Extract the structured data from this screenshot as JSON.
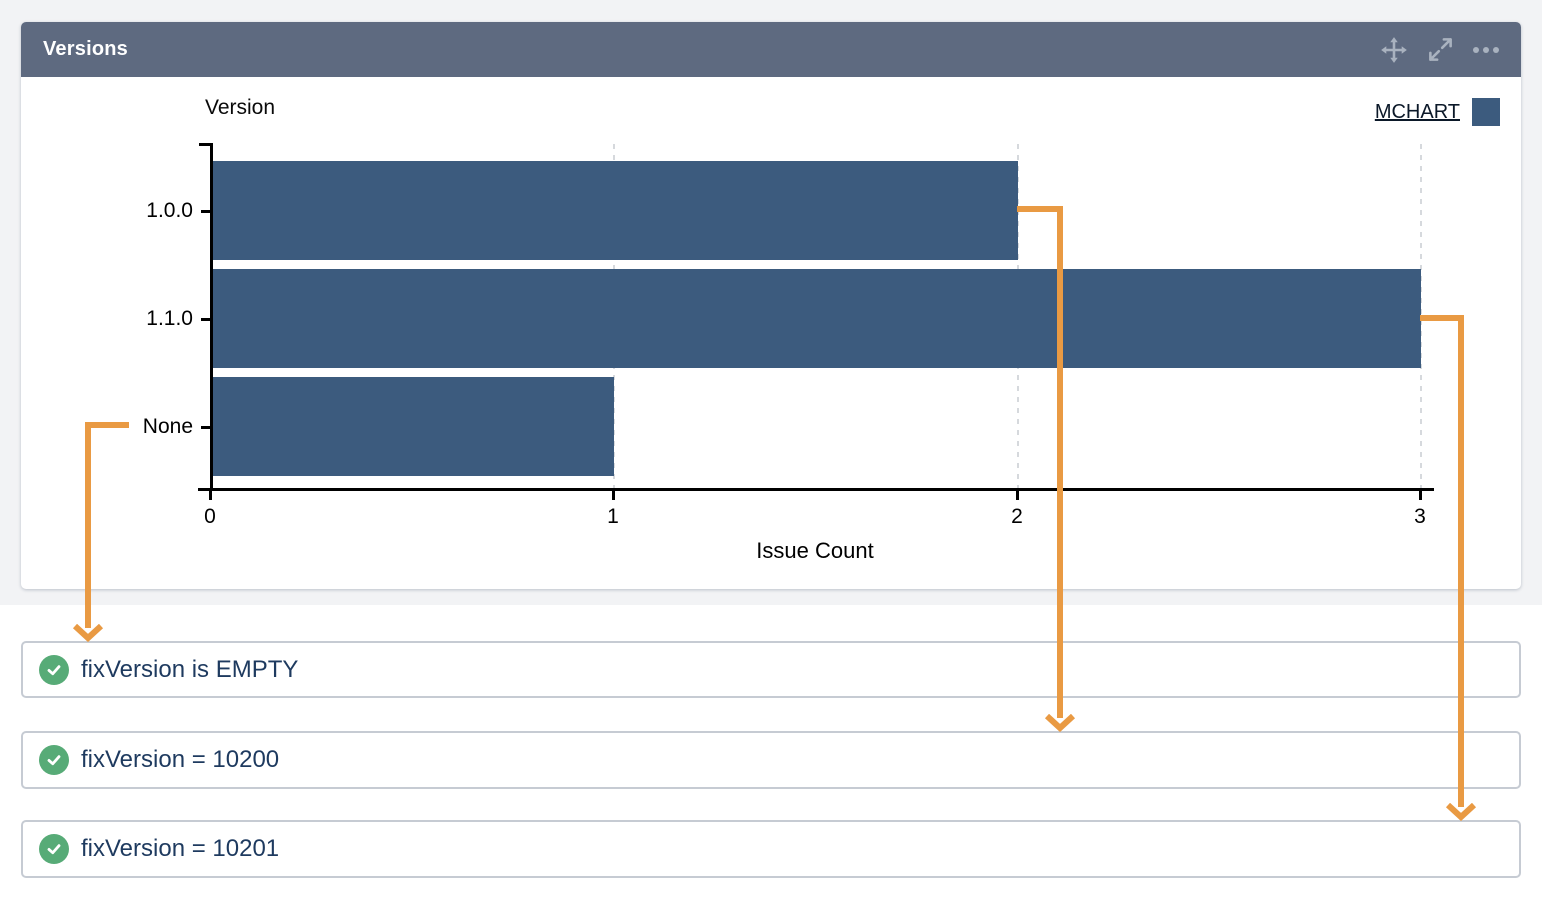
{
  "panel": {
    "title": "Versions",
    "header_icons": [
      {
        "name": "move-icon"
      },
      {
        "name": "expand-icon"
      },
      {
        "name": "more-options-icon"
      }
    ],
    "legend": {
      "label": "MCHART",
      "swatch_color": "#3c5b7e"
    }
  },
  "chart_data": {
    "type": "bar",
    "orientation": "horizontal",
    "title": "Version",
    "xlabel": "Issue Count",
    "categories": [
      "1.0.0",
      "1.1.0",
      "None"
    ],
    "series": [
      {
        "name": "MCHART",
        "values": [
          2,
          3,
          1
        ]
      }
    ],
    "values": [
      2,
      3,
      1
    ],
    "xticks": [
      0,
      1,
      2,
      3
    ],
    "xlim": [
      0,
      3.1
    ],
    "grid": "vertical-dashed",
    "legend_position": "top-right",
    "bar_color": "#3c5b7e"
  },
  "filters": [
    {
      "label": "fixVersion is EMPTY",
      "status_icon": "check-circle"
    },
    {
      "label": "fixVersion = 10200",
      "status_icon": "check-circle"
    },
    {
      "label": "fixVersion = 10201",
      "status_icon": "check-circle"
    }
  ],
  "annotations": {
    "color": "#e99a43",
    "arrows": [
      {
        "from_category": "None",
        "to_filter": "fixVersion is EMPTY"
      },
      {
        "from_category": "1.0.0",
        "to_filter": "fixVersion = 10200"
      },
      {
        "from_category": "1.1.0",
        "to_filter": "fixVersion = 10201"
      }
    ]
  },
  "colors": {
    "header_bg": "#5e6a80",
    "header_icon": "#a9b2bf",
    "dashboard_bg": "#f2f3f5",
    "bar": "#3c5b7e",
    "arrow": "#e99a43",
    "check_green": "#57ab77",
    "filter_text": "#1e3a5f",
    "filter_border": "#c6cbd3"
  }
}
